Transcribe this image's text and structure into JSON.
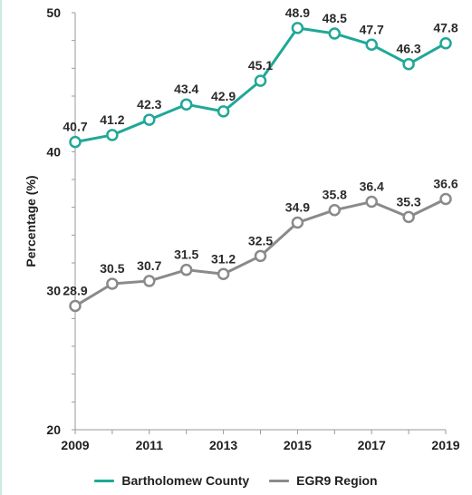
{
  "chart_data": {
    "type": "line",
    "title": "",
    "xlabel": "",
    "ylabel": "Percentage (%)",
    "ylim": [
      20,
      50
    ],
    "y_ticks": [
      "20",
      "30",
      "40",
      "50"
    ],
    "x_ticks": [
      "2009",
      "2011",
      "2013",
      "2015",
      "2017",
      "2019"
    ],
    "x": [
      2009,
      2010,
      2011,
      2012,
      2013,
      2014,
      2015,
      2016,
      2017,
      2018,
      2019
    ],
    "grid": false,
    "legend_position": "bottom",
    "series": [
      {
        "name": "Bartholomew County",
        "color": "#1fa897",
        "values": [
          40.7,
          41.2,
          42.3,
          43.4,
          42.9,
          45.1,
          48.9,
          48.5,
          47.7,
          46.3,
          47.8
        ],
        "labels": [
          "40.7",
          "41.2",
          "42.3",
          "43.4",
          "42.9",
          "45.1",
          "48.9",
          "48.5",
          "47.7",
          "46.3",
          "47.8"
        ]
      },
      {
        "name": "EGR9 Region",
        "color": "#8a8a8a",
        "values": [
          28.9,
          30.5,
          30.7,
          31.5,
          31.2,
          32.5,
          34.9,
          35.8,
          36.4,
          35.3,
          36.6
        ],
        "labels": [
          "28.9",
          "30.5",
          "30.7",
          "31.5",
          "31.2",
          "32.5",
          "34.9",
          "35.8",
          "36.4",
          "35.3",
          "36.6"
        ]
      }
    ]
  }
}
